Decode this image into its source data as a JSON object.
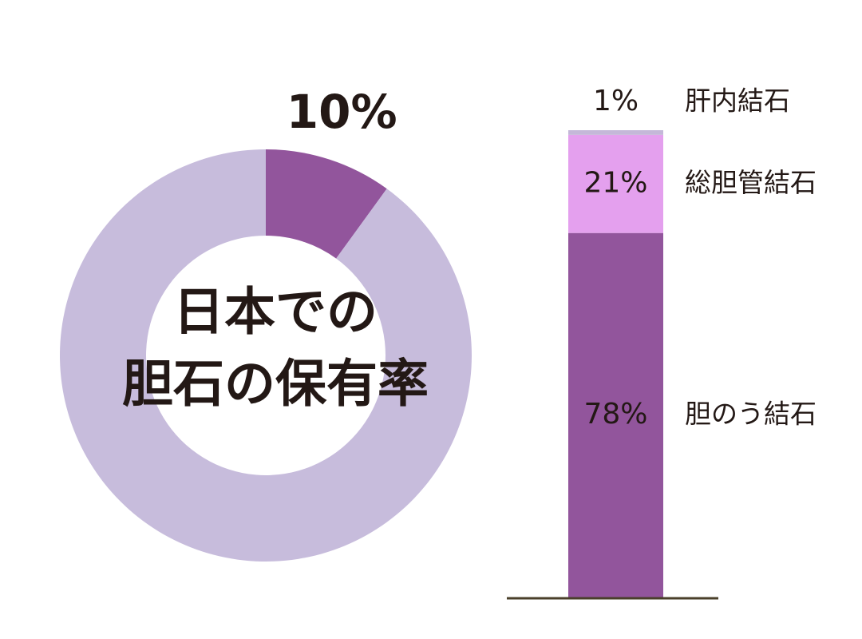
{
  "chart_data": [
    {
      "type": "donut",
      "title": [
        "日本での",
        "胆石の保有率"
      ],
      "values": [
        10,
        90
      ],
      "value_labels": [
        "10%",
        null
      ],
      "colors": [
        "#92559c",
        "#c7bcdc"
      ]
    },
    {
      "type": "bar",
      "stacked": true,
      "series": [
        {
          "name": "胆のう結石",
          "color": "#92559c",
          "values": [
            78
          ],
          "value_labels": [
            "78%"
          ]
        },
        {
          "name": "総胆管結石",
          "color": "#e4a0ee",
          "values": [
            21
          ],
          "value_labels": [
            "21%"
          ]
        },
        {
          "name": "肝内結石",
          "color": "#c4b8d8",
          "values": [
            1
          ],
          "value_labels": [
            "1%"
          ]
        }
      ]
    }
  ]
}
